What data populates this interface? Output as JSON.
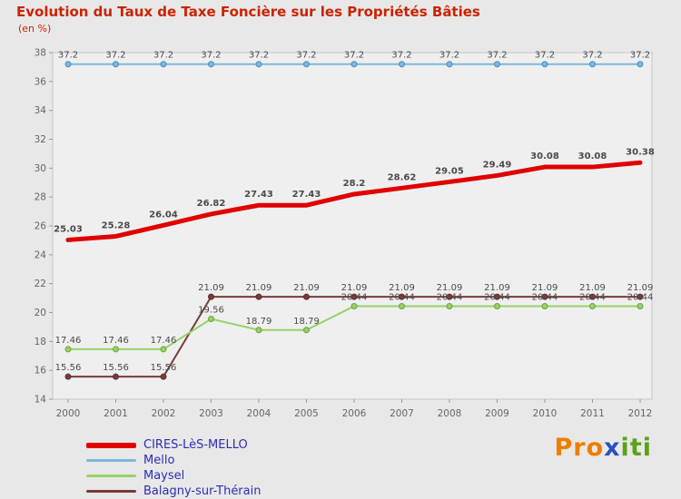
{
  "title": "Evolution du Taux de Taxe Foncière sur les Propriétés Bâties",
  "subtitle": "(en %)",
  "chart_data": {
    "type": "line",
    "x": [
      2000,
      2001,
      2002,
      2003,
      2004,
      2005,
      2006,
      2007,
      2008,
      2009,
      2010,
      2011,
      2012
    ],
    "ylim": [
      14,
      38
    ],
    "ytick_step": 2,
    "grid": false,
    "legend_position": "bottom-left",
    "plot_bg": "#efefef",
    "plot_border": "#c6c6c6",
    "label_color": "#4a4a4a",
    "axis_color": "#666666",
    "series": [
      {
        "name": "CIRES-LèS-MELLO",
        "color": "#e00000",
        "width": 5,
        "marker": false,
        "label_bold": true,
        "values": [
          25.03,
          25.28,
          26.04,
          26.82,
          27.43,
          27.43,
          28.2,
          28.62,
          29.05,
          29.49,
          30.08,
          30.08,
          30.38
        ]
      },
      {
        "name": "Mello",
        "color": "#7bb8dc",
        "marker_color": "#4a8fc0",
        "width": 2,
        "marker": true,
        "label_bold": false,
        "values": [
          37.2,
          37.2,
          37.2,
          37.2,
          37.2,
          37.2,
          37.2,
          37.2,
          37.2,
          37.2,
          37.2,
          37.2,
          37.2
        ]
      },
      {
        "name": "Maysel",
        "color": "#96d267",
        "marker_color": "#6aa23c",
        "width": 2,
        "marker": true,
        "label_bold": false,
        "values": [
          17.46,
          17.46,
          17.46,
          19.56,
          18.79,
          18.79,
          20.44,
          20.44,
          20.44,
          20.44,
          20.44,
          20.44,
          20.44
        ]
      },
      {
        "name": "Balagny-sur-Thérain",
        "color": "#7a3b3b",
        "marker_color": "#5d2e2e",
        "width": 2,
        "marker": true,
        "label_bold": false,
        "values": [
          15.56,
          15.56,
          15.56,
          21.09,
          21.09,
          21.09,
          21.09,
          21.09,
          21.09,
          21.09,
          21.09,
          21.09,
          21.09
        ]
      }
    ]
  },
  "legend": {
    "text_color": "#2d2db4"
  },
  "logo": {
    "text": "Proxiti",
    "letter_colors": [
      "#f07d00",
      "#f07d00",
      "#f07d00",
      "#2a52be",
      "#5aa319",
      "#5aa319",
      "#5aa319"
    ]
  }
}
